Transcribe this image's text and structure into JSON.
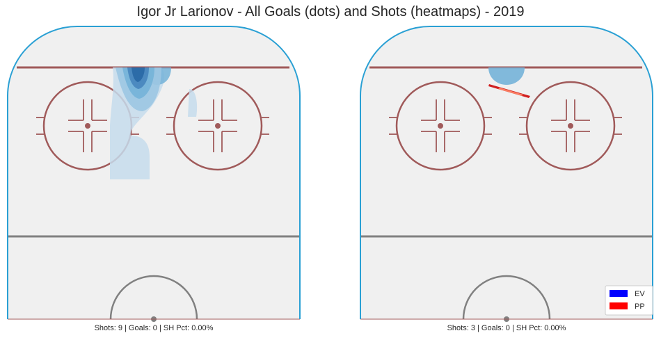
{
  "title": "Igor Jr Larionov - All Goals (dots) and Shots (heatmaps) - 2019",
  "colors": {
    "ice": "#f0f0f0",
    "boards": "#2aa0d4",
    "red_line": "#a05a5a",
    "circle": "#a05a5a",
    "center_line": "#808080",
    "heat_light": "#c5dcec",
    "heat_mid": "#74b3d8",
    "heat_dark": "#2a6aa6",
    "ev": "#0000ff",
    "pp": "#ff0000"
  },
  "chart_data": [
    {
      "type": "heatmap",
      "panel": "left",
      "caption": "Shots: 9 | Goals: 0 | SH Pct: 0.00%",
      "shots": 9,
      "goals": 0,
      "sh_pct": "0.00%",
      "density": [
        {
          "situation": "EV",
          "level": 1,
          "region": "upper slot, left of center",
          "extent": "goal line to lower edge of faceoff circles"
        },
        {
          "situation": "EV",
          "level": 2,
          "region": "upper slot near goal line"
        },
        {
          "situation": "EV",
          "level": 3,
          "region": "crease area, left of net"
        },
        {
          "situation": "EV",
          "level": 4,
          "region": "directly in front of net"
        }
      ]
    },
    {
      "type": "heatmap",
      "panel": "right",
      "caption": "Shots: 3 | Goals: 0 | SH Pct: 0.00%",
      "shots": 3,
      "goals": 0,
      "sh_pct": "0.00%",
      "density": [
        {
          "situation": "EV",
          "level": 2,
          "region": "directly in front of net"
        },
        {
          "situation": "PP",
          "level": 1,
          "region": "thin streak from slot toward right circle"
        }
      ]
    }
  ],
  "legend": [
    {
      "label": "EV",
      "color": "#0000ff"
    },
    {
      "label": "PP",
      "color": "#ff0000"
    }
  ]
}
